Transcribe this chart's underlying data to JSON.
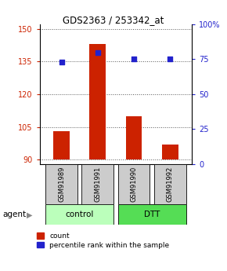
{
  "title": "GDS2363 / 253342_at",
  "samples": [
    "GSM91989",
    "GSM91991",
    "GSM91990",
    "GSM91992"
  ],
  "bar_values": [
    103,
    143,
    110,
    97
  ],
  "dot_values": [
    73,
    80,
    75,
    75
  ],
  "bar_base": 90,
  "ylim_left": [
    88,
    152
  ],
  "ylim_right": [
    0,
    100
  ],
  "yticks_left": [
    90,
    105,
    120,
    135,
    150
  ],
  "yticks_right": [
    0,
    25,
    50,
    75,
    100
  ],
  "ytick_labels_right": [
    "0",
    "25",
    "50",
    "75",
    "100%"
  ],
  "bar_color": "#cc2200",
  "dot_color": "#2222cc",
  "legend_bar_label": "count",
  "legend_dot_label": "percentile rank within the sample",
  "agent_label": "agent",
  "gridline_color": "#555555",
  "sample_box_color": "#cccccc",
  "group_control_color": "#bbffbb",
  "group_dtt_color": "#55dd55",
  "bar_width": 0.45
}
